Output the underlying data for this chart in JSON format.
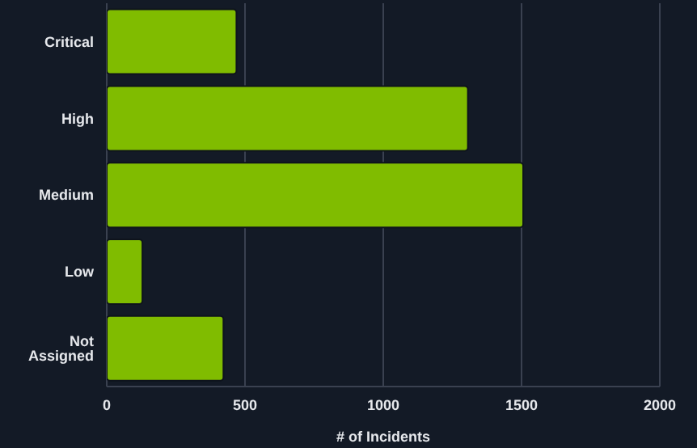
{
  "chart_data": {
    "type": "bar",
    "orientation": "horizontal",
    "categories": [
      "Critical",
      "High",
      "Medium",
      "Low",
      "Not Assigned"
    ],
    "values": [
      469,
      1306,
      1506,
      129,
      422
    ],
    "color": "#80bc00",
    "xlim": [
      0,
      2000
    ],
    "xticks": [
      0,
      500,
      1000,
      1500,
      2000
    ],
    "xlabel": "# of Incidents",
    "grid": "x"
  }
}
